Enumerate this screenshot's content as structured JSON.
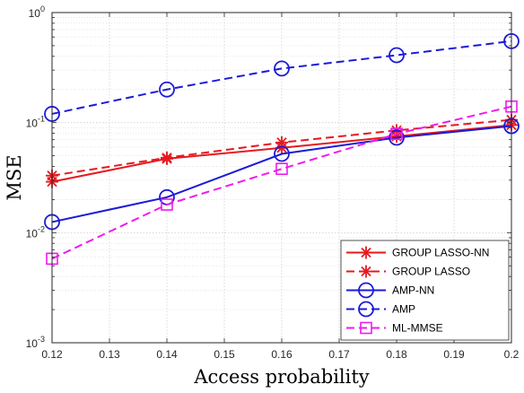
{
  "chart_data": {
    "type": "line",
    "title": "",
    "xlabel": "Access probability",
    "ylabel": "MSE",
    "x": [
      0.12,
      0.14,
      0.16,
      0.18,
      0.2
    ],
    "xlim": [
      0.12,
      0.2
    ],
    "ylim": [
      0.001,
      1
    ],
    "yscale": "log",
    "grid": true,
    "minor_grid": true,
    "x_ticks": [
      0.12,
      0.13,
      0.14,
      0.15,
      0.16,
      0.17,
      0.18,
      0.19,
      0.2
    ],
    "x_tick_labels": [
      "0.12",
      "0.13",
      "0.14",
      "0.15",
      "0.16",
      "0.17",
      "0.18",
      "0.19",
      "0.2"
    ],
    "y_ticks": [
      0.001,
      0.01,
      0.1,
      1
    ],
    "y_tick_labels": [
      {
        "base": "10",
        "exp": "-3"
      },
      {
        "base": "10",
        "exp": "-2"
      },
      {
        "base": "10",
        "exp": "-1"
      },
      {
        "base": "10",
        "exp": "0"
      }
    ],
    "legend_position": "bottom-right",
    "series": [
      {
        "name": "GROUP LASSO-NN",
        "values": [
          0.029,
          0.047,
          0.059,
          0.075,
          0.095
        ],
        "color": "#e6191f",
        "dash": "solid",
        "marker": "asterisk"
      },
      {
        "name": "GROUP LASSO",
        "values": [
          0.033,
          0.048,
          0.066,
          0.085,
          0.106
        ],
        "color": "#e6191f",
        "dash": "dashed",
        "marker": "asterisk"
      },
      {
        "name": "AMP-NN",
        "values": [
          0.0125,
          0.021,
          0.052,
          0.073,
          0.093
        ],
        "color": "#1b1bd8",
        "dash": "solid",
        "marker": "circle"
      },
      {
        "name": "AMP",
        "values": [
          0.12,
          0.2,
          0.31,
          0.41,
          0.55
        ],
        "color": "#1b1bd8",
        "dash": "dashed",
        "marker": "circle"
      },
      {
        "name": "ML-MMSE",
        "values": [
          0.0058,
          0.018,
          0.038,
          0.079,
          0.14
        ],
        "color": "#ee1aee",
        "dash": "dashed",
        "marker": "square"
      }
    ]
  }
}
